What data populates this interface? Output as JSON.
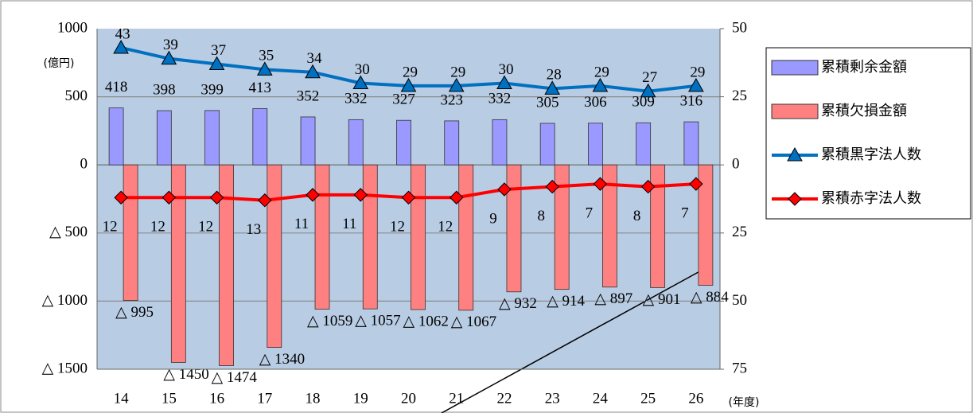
{
  "chart_data": {
    "type": "bar_line",
    "y_unit": "(億円)",
    "x_unit": "(年度)",
    "categories": [
      "14",
      "15",
      "16",
      "17",
      "18",
      "19",
      "20",
      "21",
      "22",
      "23",
      "24",
      "25",
      "26"
    ],
    "ylim": [
      -1500,
      1000
    ],
    "yticks": [
      {
        "value": -1500,
        "label": "△ 1500"
      },
      {
        "value": -1000,
        "label": "△ 1000"
      },
      {
        "value": -500,
        "label": "△ 500"
      },
      0,
      500,
      1000
    ],
    "y2lim": [
      -75,
      50
    ],
    "y2ticks": [
      {
        "value": -75,
        "label": "75"
      },
      {
        "value": -50,
        "label": "50"
      },
      {
        "value": -25,
        "label": "25"
      },
      0,
      25,
      50
    ],
    "grid": true,
    "legend": "right",
    "series": [
      {
        "name": "累積剰余金額",
        "type": "bar",
        "color": "#9999ff",
        "values": [
          418,
          398,
          399,
          413,
          352,
          332,
          327,
          323,
          332,
          305,
          306,
          309,
          316
        ]
      },
      {
        "name": "累積欠損金額",
        "type": "bar",
        "color": "#ff8080",
        "values": [
          -995,
          -1450,
          -1474,
          -1340,
          -1059,
          -1057,
          -1062,
          -1067,
          -932,
          -914,
          -897,
          -901,
          -884
        ],
        "value_labels": [
          "△ 995",
          "△ 1450",
          "△ 1474",
          "△ 1340",
          "△ 1059",
          "△ 1057",
          "△ 1062",
          "△ 1067",
          "△ 932",
          "△ 914",
          "△ 897",
          "△ 901",
          "△ 884"
        ]
      },
      {
        "name": "累積黒字法人数",
        "type": "line",
        "axis": "y2",
        "color": "#0070c0",
        "marker": "triangle",
        "values": [
          43,
          39,
          37,
          35,
          34,
          30,
          29,
          29,
          30,
          28,
          29,
          27,
          29
        ]
      },
      {
        "name": "累積赤字法人数",
        "type": "line",
        "axis": "y2",
        "color": "#ff0000",
        "marker": "diamond",
        "values": [
          -12,
          -12,
          -12,
          -13,
          -11,
          -11,
          -12,
          -12,
          -9,
          -8,
          -7,
          -8,
          -7
        ],
        "value_labels": [
          "12",
          "12",
          "12",
          "13",
          "11",
          "11",
          "12",
          "12",
          "9",
          "8",
          "7",
          "8",
          "7"
        ]
      }
    ]
  }
}
